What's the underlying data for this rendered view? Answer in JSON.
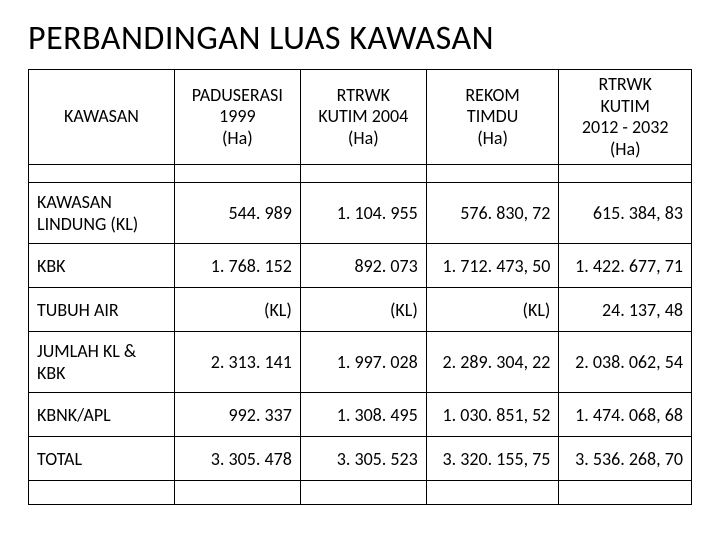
{
  "title": "PERBANDINGAN LUAS KAWASAN",
  "table": {
    "columns": [
      "KAWASAN",
      "PADUSERASI\n1999\n(Ha)",
      "RTRWK\nKUTIM 2004\n(Ha)",
      "REKOM\nTIMDU\n(Ha)",
      "RTRWK\nKUTIM\n2012 - 2032\n(Ha)"
    ],
    "rows": [
      {
        "label": "KAWASAN LINDUNG (KL)",
        "cells": [
          "544. 989",
          "1. 104. 955",
          "576. 830, 72",
          "615. 384, 83"
        ]
      },
      {
        "label": "KBK",
        "cells": [
          "1. 768. 152",
          "892. 073",
          "1. 712. 473, 50",
          "1. 422. 677, 71"
        ]
      },
      {
        "label": "TUBUH AIR",
        "cells": [
          "(KL)",
          "(KL)",
          "(KL)",
          "24. 137, 48"
        ]
      },
      {
        "label": "JUMLAH KL & KBK",
        "cells": [
          "2. 313. 141",
          "1. 997. 028",
          "2. 289. 304, 22",
          "2. 038. 062, 54"
        ]
      },
      {
        "label": "KBNK/APL",
        "cells": [
          "992. 337",
          "1. 308. 495",
          "1. 030. 851, 52",
          "1. 474. 068, 68"
        ]
      },
      {
        "label": "TOTAL",
        "cells": [
          "3. 305. 478",
          "3. 305. 523",
          "3. 320. 155, 75",
          "3. 536. 268, 70"
        ]
      }
    ]
  },
  "style": {
    "title_fontsize": 34,
    "cell_fontsize": 18,
    "border_color": "#000000",
    "background_color": "#ffffff",
    "text_color": "#000000",
    "font_family": "Calibri, Arial, sans-serif"
  }
}
